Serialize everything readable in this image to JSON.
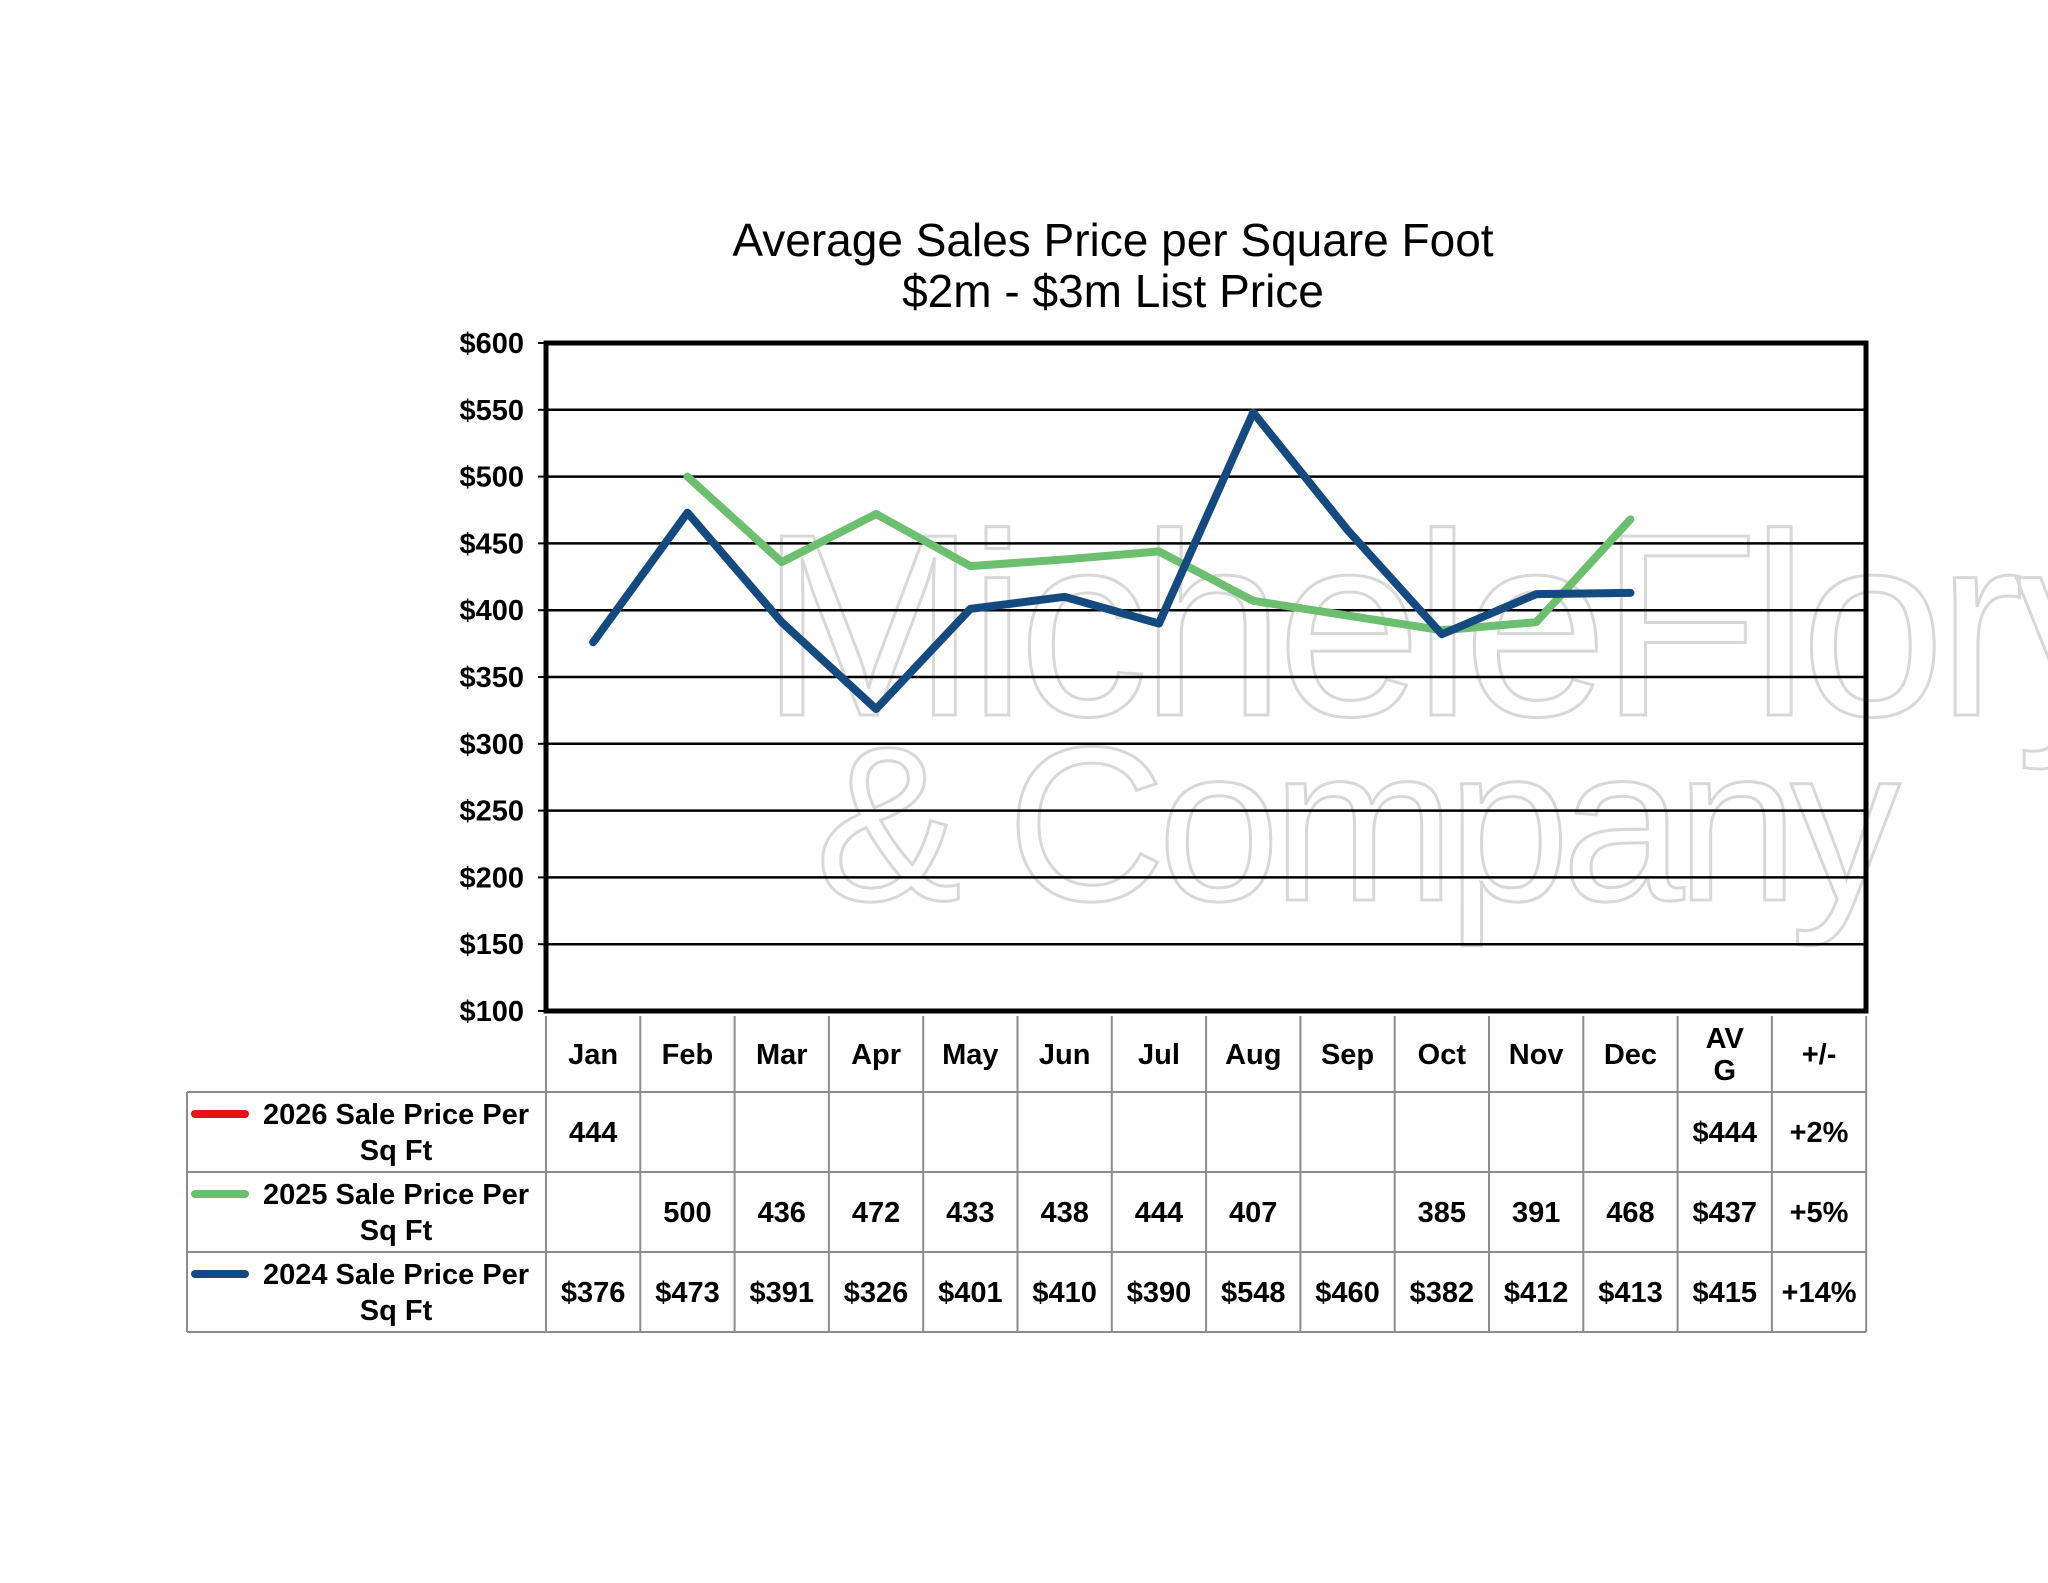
{
  "chart_data": {
    "type": "line",
    "title": "Average Sales Price per Square Foot",
    "subtitle": "$2m - $3m List Price",
    "ylim": [
      100,
      600
    ],
    "ytick_step": 50,
    "ytick_labels": [
      "$100",
      "$150",
      "$200",
      "$250",
      "$300",
      "$350",
      "$400",
      "$450",
      "$500",
      "$550",
      "$600"
    ],
    "grid": true,
    "categories": [
      "Jan",
      "Feb",
      "Mar",
      "Apr",
      "May",
      "Jun",
      "Jul",
      "Aug",
      "Sep",
      "Oct",
      "Nov",
      "Dec"
    ],
    "extra_headers": [
      "AV\nG",
      "+/-"
    ],
    "series": [
      {
        "name": "2026 Sale Price Per Sq Ft",
        "color": "#e8121b",
        "values": [
          444,
          null,
          null,
          null,
          null,
          null,
          null,
          null,
          null,
          null,
          null,
          null
        ],
        "cells": [
          "444",
          "",
          "",
          "",
          "",
          "",
          "",
          "",
          "",
          "",
          "",
          ""
        ],
        "avg": "$444",
        "change": "+2%"
      },
      {
        "name": "2025 Sale Price Per Sq Ft",
        "color": "#6dbf70",
        "values": [
          null,
          500,
          436,
          472,
          433,
          438,
          444,
          407,
          null,
          385,
          391,
          468
        ],
        "cells": [
          "",
          "500",
          "436",
          "472",
          "433",
          "438",
          "444",
          "407",
          "",
          "385",
          "391",
          "468"
        ],
        "avg": "$437",
        "change": "+5%"
      },
      {
        "name": "2024 Sale Price Per Sq Ft",
        "color": "#154a80",
        "values": [
          376,
          473,
          391,
          326,
          401,
          410,
          390,
          548,
          460,
          382,
          412,
          413
        ],
        "cells": [
          "$376",
          "$473",
          "$391",
          "$326",
          "$401",
          "$410",
          "$390",
          "$548",
          "$460",
          "$382",
          "$412",
          "$413"
        ],
        "avg": "$415",
        "change": "+14%"
      }
    ],
    "watermark": [
      "MicheleFlory",
      "& Company"
    ]
  }
}
